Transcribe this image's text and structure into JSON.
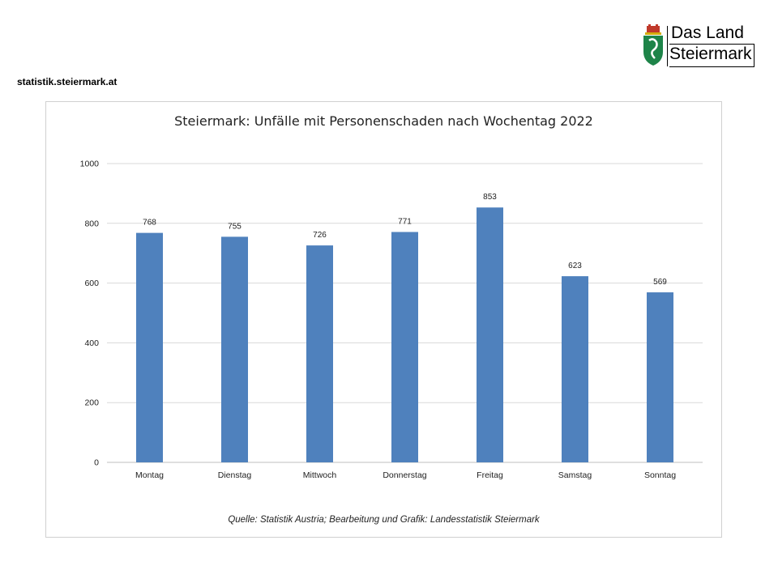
{
  "site": {
    "label": "statistik.steiermark.at"
  },
  "logo": {
    "line1": "Das Land",
    "line2": "Steiermark",
    "icon": "coat-of-arms-icon"
  },
  "colors": {
    "bar": "#4f81bd",
    "grid": "#d9d9d9",
    "axis": "#bfbfbf"
  },
  "chart_data": {
    "type": "bar",
    "title": "Steiermark: Unfälle mit Personenschaden nach Wochentag 2022",
    "xlabel": "",
    "ylabel": "",
    "categories": [
      "Montag",
      "Dienstag",
      "Mittwoch",
      "Donnerstag",
      "Freitag",
      "Samstag",
      "Sonntag"
    ],
    "values": [
      768,
      755,
      726,
      771,
      853,
      623,
      569
    ],
    "data_labels": [
      "768",
      "755",
      "726",
      "771",
      "853",
      "623",
      "569"
    ],
    "ylim": [
      0,
      1000
    ],
    "yticks": [
      0,
      200,
      400,
      600,
      800,
      1000
    ],
    "grid": true,
    "legend": "none"
  },
  "source": "Quelle: Statistik Austria; Bearbeitung und Grafik: Landesstatistik Steiermark"
}
